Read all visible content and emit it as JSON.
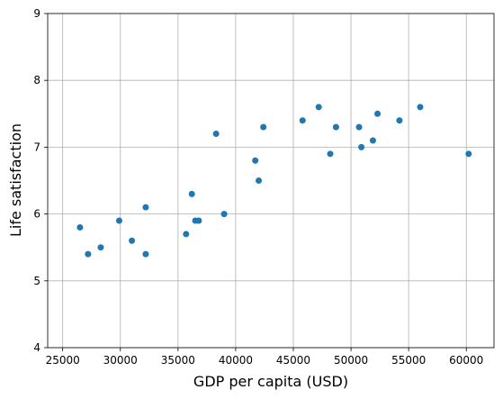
{
  "chart_data": {
    "type": "scatter",
    "title": "",
    "xlabel": "GDP per capita (USD)",
    "ylabel": "Life satisfaction",
    "xlim": [
      23700,
      62400
    ],
    "ylim": [
      4,
      9
    ],
    "xticks": [
      25000,
      30000,
      35000,
      40000,
      45000,
      50000,
      55000,
      60000
    ],
    "yticks": [
      4,
      5,
      6,
      7,
      8,
      9
    ],
    "grid": true,
    "marker_color": "#1f77b4",
    "points": [
      {
        "x": 26500,
        "y": 5.8
      },
      {
        "x": 27200,
        "y": 5.4
      },
      {
        "x": 28300,
        "y": 5.5
      },
      {
        "x": 29900,
        "y": 5.9
      },
      {
        "x": 31000,
        "y": 5.6
      },
      {
        "x": 32200,
        "y": 6.1
      },
      {
        "x": 32200,
        "y": 5.4
      },
      {
        "x": 35700,
        "y": 5.7
      },
      {
        "x": 36200,
        "y": 6.3
      },
      {
        "x": 36500,
        "y": 5.9
      },
      {
        "x": 36800,
        "y": 5.9
      },
      {
        "x": 38300,
        "y": 7.2
      },
      {
        "x": 39000,
        "y": 6.0
      },
      {
        "x": 41700,
        "y": 6.8
      },
      {
        "x": 42000,
        "y": 6.5
      },
      {
        "x": 42400,
        "y": 7.3
      },
      {
        "x": 45800,
        "y": 7.4
      },
      {
        "x": 47200,
        "y": 7.6
      },
      {
        "x": 48200,
        "y": 6.9
      },
      {
        "x": 48700,
        "y": 7.3
      },
      {
        "x": 50700,
        "y": 7.3
      },
      {
        "x": 50900,
        "y": 7.0
      },
      {
        "x": 51900,
        "y": 7.1
      },
      {
        "x": 52300,
        "y": 7.5
      },
      {
        "x": 54200,
        "y": 7.4
      },
      {
        "x": 56000,
        "y": 7.6
      },
      {
        "x": 60200,
        "y": 6.9
      }
    ]
  }
}
